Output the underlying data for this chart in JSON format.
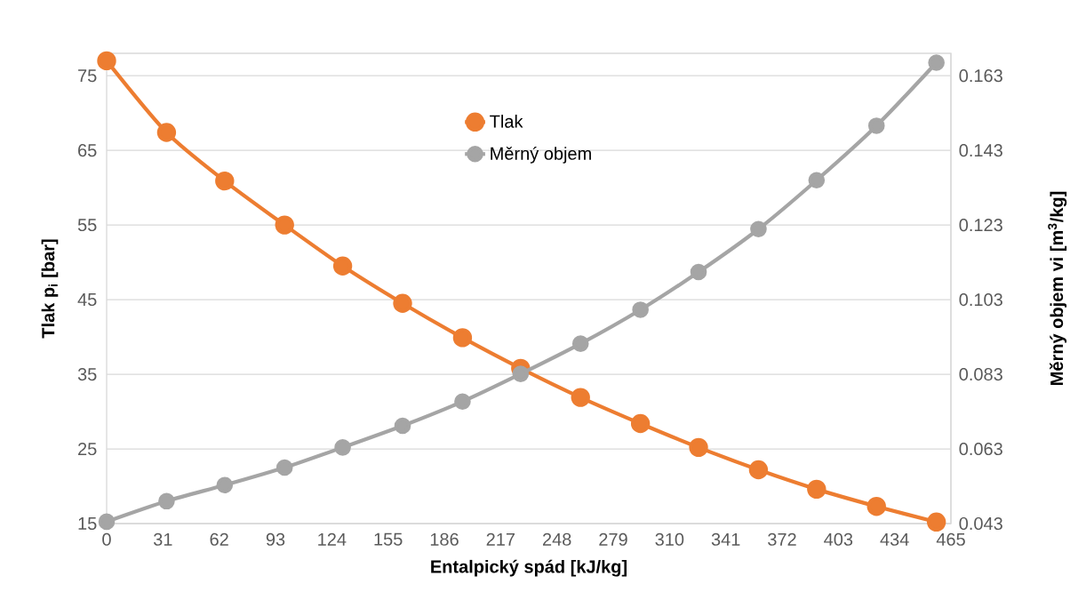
{
  "chart_data": {
    "type": "line",
    "xlabel": "Entalpický spád [kJ/kg]",
    "ylabel": "Tlak p$_{i}$ [bar]",
    "y2label": "Měrný objem vi [m$^{3}$/kg]",
    "x": [
      0,
      33,
      65,
      98,
      130,
      163,
      196,
      228,
      261,
      294,
      326,
      359,
      391,
      424,
      457
    ],
    "series": [
      {
        "name": "Tlak",
        "color": "#ed7d31",
        "values": [
          77.0,
          67.4,
          60.9,
          55.0,
          49.5,
          44.5,
          39.9,
          35.8,
          31.9,
          28.4,
          25.2,
          22.2,
          19.6,
          17.3,
          15.2
        ]
      },
      {
        "name": "Měrný objem",
        "color": "#a5a5a5",
        "axis": "y2",
        "values": [
          0.0435,
          0.049,
          0.0533,
          0.058,
          0.0634,
          0.0692,
          0.0757,
          0.0831,
          0.0912,
          0.1003,
          0.1104,
          0.1219,
          0.135,
          0.1496,
          0.1665
        ]
      }
    ],
    "xlim": [
      0,
      465
    ],
    "xticks": [
      0,
      31,
      62,
      93,
      124,
      155,
      186,
      217,
      248,
      279,
      310,
      341,
      372,
      403,
      434,
      465
    ],
    "ylim": [
      15,
      78
    ],
    "yticks": [
      15,
      25,
      35,
      45,
      55,
      65,
      75
    ],
    "y2lim": [
      0.043,
      0.169
    ],
    "y2ticks": [
      0.043,
      0.063,
      0.083,
      0.103,
      0.123,
      0.143,
      0.163
    ],
    "grid": "y",
    "legend": "top",
    "marker": "circle",
    "line_style": "solid"
  }
}
